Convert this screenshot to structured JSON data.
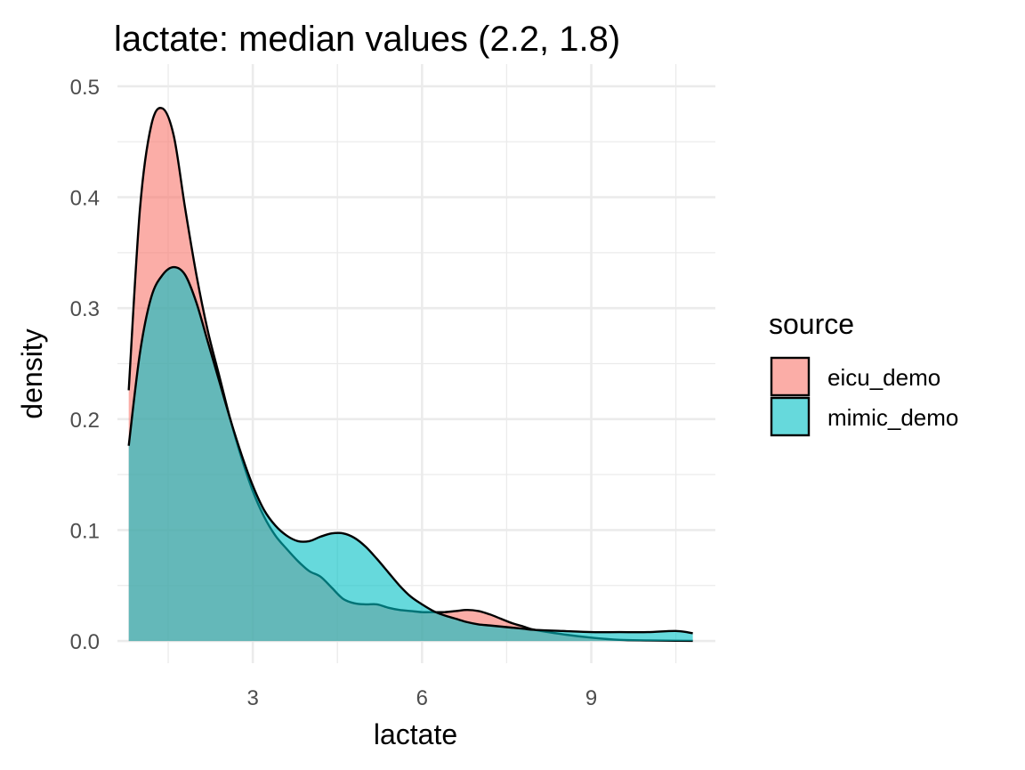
{
  "chart_data": {
    "type": "area",
    "title": "lactate: median values (2.2, 1.8)",
    "xlabel": "lactate",
    "ylabel": "density",
    "xlim": [
      0.6,
      11.2
    ],
    "ylim": [
      -0.02,
      0.52
    ],
    "x_ticks": [
      3,
      6,
      9
    ],
    "x_tick_labels": [
      "3",
      "6",
      "9"
    ],
    "y_ticks": [
      0.0,
      0.1,
      0.2,
      0.3,
      0.4,
      0.5
    ],
    "y_tick_labels": [
      "0.0",
      "0.1",
      "0.2",
      "0.3",
      "0.4",
      "0.5"
    ],
    "grid": true,
    "legend": {
      "title": "source",
      "position": "right"
    },
    "series": [
      {
        "name": "eicu_demo",
        "color": "#F8766D",
        "x": [
          0.8,
          1.0,
          1.2,
          1.4,
          1.6,
          1.8,
          2.0,
          2.2,
          2.4,
          2.6,
          2.8,
          3.0,
          3.2,
          3.4,
          3.6,
          3.8,
          4.0,
          4.2,
          4.4,
          4.6,
          4.8,
          5.0,
          5.2,
          5.4,
          5.6,
          5.8,
          6.0,
          6.2,
          6.4,
          6.6,
          6.8,
          7.0,
          7.2,
          7.4,
          7.6,
          7.8,
          8.0,
          8.5,
          9.0,
          9.5,
          10.0,
          10.5,
          10.8
        ],
        "values": [
          0.226,
          0.39,
          0.465,
          0.48,
          0.455,
          0.39,
          0.33,
          0.28,
          0.24,
          0.2,
          0.165,
          0.135,
          0.112,
          0.095,
          0.083,
          0.072,
          0.063,
          0.058,
          0.048,
          0.038,
          0.034,
          0.033,
          0.033,
          0.03,
          0.028,
          0.027,
          0.026,
          0.026,
          0.026,
          0.027,
          0.028,
          0.027,
          0.024,
          0.02,
          0.016,
          0.013,
          0.01,
          0.006,
          0.003,
          0.001,
          0.0005,
          0.0002,
          0.0001
        ]
      },
      {
        "name": "mimic_demo",
        "color": "#00BFC4",
        "x": [
          0.8,
          1.0,
          1.2,
          1.4,
          1.6,
          1.8,
          2.0,
          2.2,
          2.4,
          2.6,
          2.8,
          3.0,
          3.2,
          3.4,
          3.6,
          3.8,
          4.0,
          4.2,
          4.4,
          4.6,
          4.8,
          5.0,
          5.2,
          5.4,
          5.6,
          5.8,
          6.0,
          6.2,
          6.4,
          6.6,
          6.8,
          7.0,
          7.2,
          7.4,
          7.6,
          7.8,
          8.0,
          8.5,
          9.0,
          9.5,
          10.0,
          10.5,
          10.8
        ],
        "values": [
          0.176,
          0.26,
          0.31,
          0.33,
          0.337,
          0.33,
          0.305,
          0.27,
          0.235,
          0.2,
          0.168,
          0.14,
          0.118,
          0.104,
          0.095,
          0.09,
          0.09,
          0.094,
          0.097,
          0.097,
          0.093,
          0.085,
          0.074,
          0.062,
          0.05,
          0.04,
          0.033,
          0.027,
          0.023,
          0.02,
          0.017,
          0.015,
          0.014,
          0.013,
          0.012,
          0.011,
          0.01,
          0.009,
          0.008,
          0.008,
          0.008,
          0.009,
          0.007
        ]
      }
    ]
  }
}
